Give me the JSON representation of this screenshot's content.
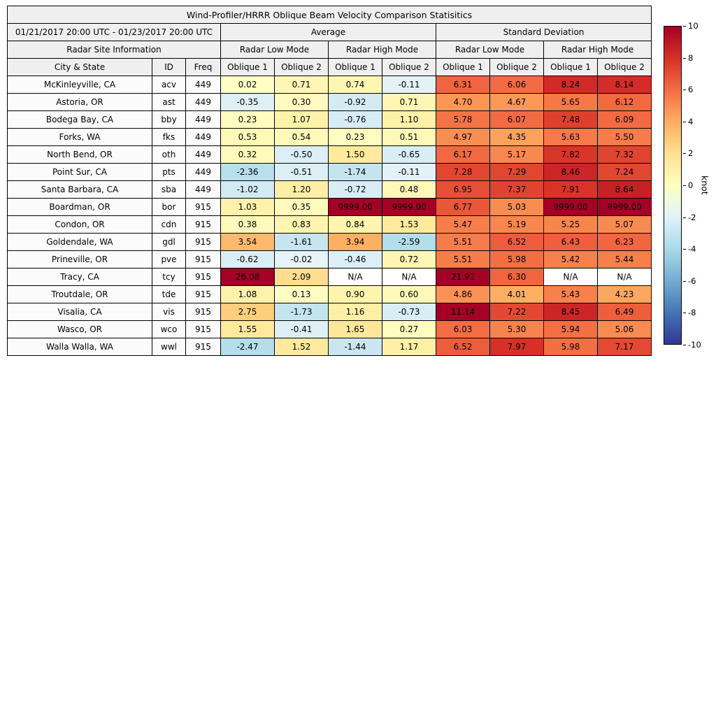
{
  "chart_data": {
    "type": "heatmap",
    "title": "Wind-Profiler/HRRR Oblique Beam Velocity Comparison Statisitics",
    "date_range": "01/21/2017 20:00 UTC - 01/23/2017 20:00 UTC",
    "group_headers": [
      "Average",
      "Standard Deviation"
    ],
    "site_info_header": "Radar Site Information",
    "mode_headers": [
      "Radar Low Mode",
      "Radar High Mode",
      "Radar Low Mode",
      "Radar High Mode"
    ],
    "columns": {
      "city": "City & State",
      "id": "ID",
      "freq": "Freq",
      "oblique1": "Oblique 1",
      "oblique2": "Oblique 2"
    },
    "rows": [
      {
        "city": "McKinleyville, CA",
        "id": "acv",
        "freq": "449",
        "values": [
          "0.02",
          "0.71",
          "0.74",
          "-0.11",
          "6.31",
          "6.06",
          "8.24",
          "8.14"
        ]
      },
      {
        "city": "Astoria, OR",
        "id": "ast",
        "freq": "449",
        "values": [
          "-0.35",
          "0.30",
          "-0.92",
          "0.71",
          "4.70",
          "4.67",
          "5.65",
          "6.12"
        ]
      },
      {
        "city": "Bodega Bay, CA",
        "id": "bby",
        "freq": "449",
        "values": [
          "0.23",
          "1.07",
          "-0.76",
          "1.10",
          "5.78",
          "6.07",
          "7.48",
          "6.09"
        ]
      },
      {
        "city": "Forks, WA",
        "id": "fks",
        "freq": "449",
        "values": [
          "0.53",
          "0.54",
          "0.23",
          "0.51",
          "4.97",
          "4.35",
          "5.63",
          "5.50"
        ]
      },
      {
        "city": "North Bend, OR",
        "id": "oth",
        "freq": "449",
        "values": [
          "0.32",
          "-0.50",
          "1.50",
          "-0.65",
          "6.17",
          "5.17",
          "7.82",
          "7.32"
        ]
      },
      {
        "city": "Point Sur, CA",
        "id": "pts",
        "freq": "449",
        "values": [
          "-2.36",
          "-0.51",
          "-1.74",
          "-0.11",
          "7.28",
          "7.29",
          "8.46",
          "7.24"
        ]
      },
      {
        "city": "Santa Barbara, CA",
        "id": "sba",
        "freq": "449",
        "values": [
          "-1.02",
          "1.20",
          "-0.72",
          "0.48",
          "6.95",
          "7.37",
          "7.91",
          "8.64"
        ]
      },
      {
        "city": "Boardman, OR",
        "id": "bor",
        "freq": "915",
        "values": [
          "1.03",
          "0.35",
          "9999.00",
          "9999.00",
          "6.77",
          "5.03",
          "9999.00",
          "9999.00"
        ]
      },
      {
        "city": "Condon, OR",
        "id": "cdn",
        "freq": "915",
        "values": [
          "0.38",
          "0.83",
          "0.84",
          "1.53",
          "5.47",
          "5.19",
          "5.25",
          "5.07"
        ]
      },
      {
        "city": "Goldendale, WA",
        "id": "gdl",
        "freq": "915",
        "values": [
          "3.54",
          "-1.61",
          "3.94",
          "-2.59",
          "5.51",
          "6.52",
          "6.43",
          "6.23"
        ]
      },
      {
        "city": "Prineville, OR",
        "id": "pve",
        "freq": "915",
        "values": [
          "-0.62",
          "-0.02",
          "-0.46",
          "0.72",
          "5.51",
          "5.98",
          "5.42",
          "5.44"
        ]
      },
      {
        "city": "Tracy, CA",
        "id": "tcy",
        "freq": "915",
        "values": [
          "26.08",
          "2.09",
          "N/A",
          "N/A",
          "21.91",
          "6.30",
          "N/A",
          "N/A"
        ]
      },
      {
        "city": "Troutdale, OR",
        "id": "tde",
        "freq": "915",
        "values": [
          "1.08",
          "0.13",
          "0.90",
          "0.60",
          "4.86",
          "4.01",
          "5.43",
          "4.23"
        ]
      },
      {
        "city": "Visalia, CA",
        "id": "vis",
        "freq": "915",
        "values": [
          "2.75",
          "-1.73",
          "1.16",
          "-0.73",
          "11.14",
          "7.22",
          "8.45",
          "6.49"
        ]
      },
      {
        "city": "Wasco, OR",
        "id": "wco",
        "freq": "915",
        "values": [
          "1.55",
          "-0.41",
          "1.65",
          "0.27",
          "6.03",
          "5.30",
          "5.94",
          "5.06"
        ]
      },
      {
        "city": "Walla Walla, WA",
        "id": "wwl",
        "freq": "915",
        "values": [
          "-2.47",
          "1.52",
          "-1.44",
          "1.17",
          "6.52",
          "7.97",
          "5.98",
          "7.17"
        ]
      }
    ],
    "colorbar": {
      "label": "knot",
      "min": -10,
      "max": 10,
      "ticks": [
        10,
        8,
        6,
        4,
        2,
        0,
        -2,
        -4,
        -6,
        -8,
        -10
      ],
      "gradient_top_to_bottom": [
        "#a50026",
        "#d73027",
        "#f46d43",
        "#fdae61",
        "#fee090",
        "#ffffbf",
        "#e0f3f8",
        "#abd9e9",
        "#74add1",
        "#4575b4",
        "#313695"
      ]
    },
    "colormap": {
      "na_color": "#ffffff",
      "positive_stops": [
        [
          0,
          "#ffffc6"
        ],
        [
          1,
          "#fff3ab"
        ],
        [
          2,
          "#fee090"
        ],
        [
          4,
          "#fdae61"
        ],
        [
          6,
          "#f46d43"
        ],
        [
          8,
          "#d73027"
        ],
        [
          10,
          "#a50026"
        ]
      ],
      "negative_stops": [
        [
          0,
          "#e6f3f8"
        ],
        [
          3,
          "#abd9e9"
        ],
        [
          6,
          "#74add1"
        ],
        [
          8,
          "#4575b4"
        ],
        [
          10,
          "#313695"
        ]
      ]
    }
  }
}
